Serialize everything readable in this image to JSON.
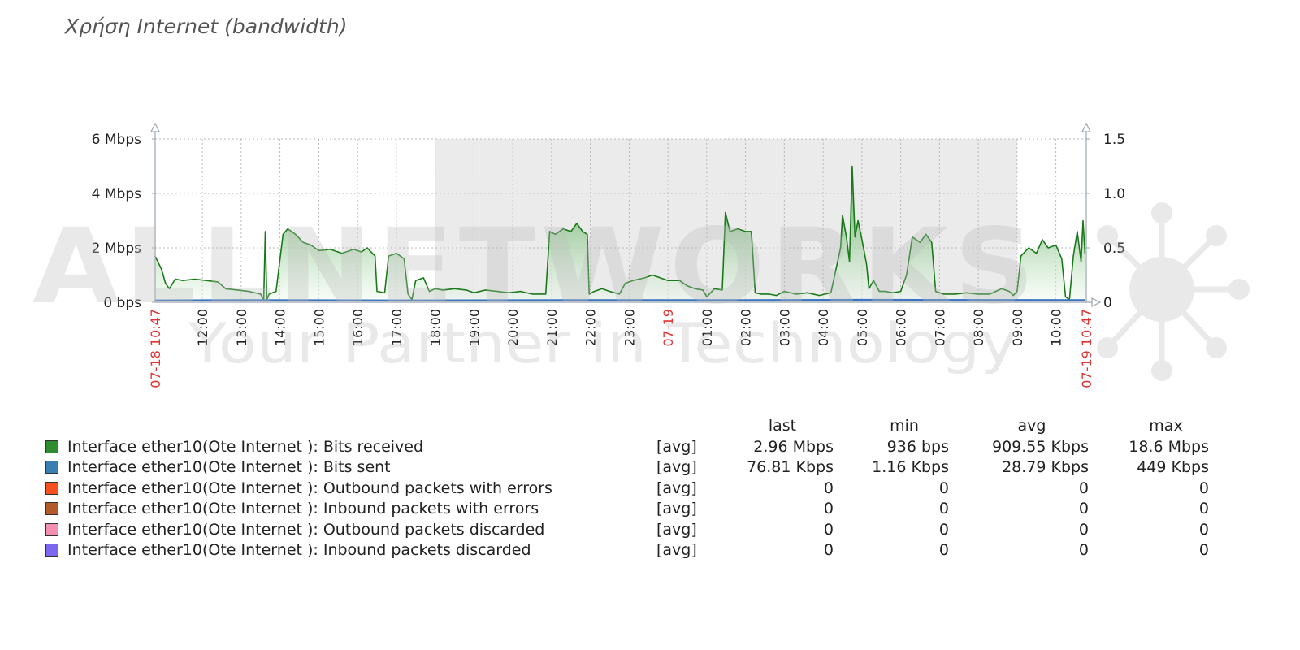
{
  "title": "Χρήση Internet (bandwidth)",
  "watermark": {
    "brand": "ALLNETWORKS",
    "tagline": "Your Partner in Technology"
  },
  "colors": {
    "grid": "#b9b9b9",
    "work_period_band": "#ebebeb",
    "area_fill_top": "#3c9a3c",
    "area_fill_bottom": "#f2fbf2",
    "received_line": "#1a7a1a",
    "sent_line": "#3b74c2",
    "axis": "#9aa6b0",
    "date_label": "#e03333",
    "axis_text": "#222222"
  },
  "chart_data": {
    "type": "area",
    "left_axis": {
      "min": 0,
      "max": 6,
      "unit": "Mbps",
      "ticks": [
        0,
        2,
        4,
        6
      ],
      "tick_labels": [
        "0 bps",
        "2 Mbps",
        "4 Mbps",
        "6 Mbps"
      ]
    },
    "right_axis": {
      "min": 0,
      "max": 1.5,
      "ticks": [
        0,
        0.5,
        1.0,
        1.5
      ],
      "tick_labels": [
        "0",
        "0.5",
        "1.0",
        "1.5"
      ]
    },
    "x_axis": {
      "start_hour": 10.783,
      "end_hour": 34.783,
      "labels": [
        {
          "hour": 10.783,
          "text": "07-18 10:47",
          "highlight": true
        },
        {
          "hour": 12,
          "text": "12:00"
        },
        {
          "hour": 13,
          "text": "13:00"
        },
        {
          "hour": 14,
          "text": "14:00"
        },
        {
          "hour": 15,
          "text": "15:00"
        },
        {
          "hour": 16,
          "text": "16:00"
        },
        {
          "hour": 17,
          "text": "17:00"
        },
        {
          "hour": 18,
          "text": "18:00"
        },
        {
          "hour": 19,
          "text": "19:00"
        },
        {
          "hour": 20,
          "text": "20:00"
        },
        {
          "hour": 21,
          "text": "21:00"
        },
        {
          "hour": 22,
          "text": "22:00"
        },
        {
          "hour": 23,
          "text": "23:00"
        },
        {
          "hour": 24,
          "text": "07-19",
          "highlight": true
        },
        {
          "hour": 25,
          "text": "01:00"
        },
        {
          "hour": 26,
          "text": "02:00"
        },
        {
          "hour": 27,
          "text": "03:00"
        },
        {
          "hour": 28,
          "text": "04:00"
        },
        {
          "hour": 29,
          "text": "05:00"
        },
        {
          "hour": 30,
          "text": "06:00"
        },
        {
          "hour": 31,
          "text": "07:00"
        },
        {
          "hour": 32,
          "text": "08:00"
        },
        {
          "hour": 33,
          "text": "09:00"
        },
        {
          "hour": 34,
          "text": "10:00"
        },
        {
          "hour": 34.783,
          "text": "07-19 10:47",
          "highlight": true
        }
      ]
    },
    "work_period": {
      "from_hour": 18,
      "to_hour": 33
    },
    "series": [
      {
        "name": "Interface ether10(Ote Internet ): Bits received",
        "unit": "Mbps",
        "points": [
          [
            10.78,
            1.7
          ],
          [
            10.85,
            1.5
          ],
          [
            10.95,
            1.2
          ],
          [
            11.05,
            0.7
          ],
          [
            11.15,
            0.5
          ],
          [
            11.3,
            0.85
          ],
          [
            11.5,
            0.8
          ],
          [
            11.8,
            0.85
          ],
          [
            12.1,
            0.8
          ],
          [
            12.4,
            0.75
          ],
          [
            12.6,
            0.5
          ],
          [
            12.9,
            0.45
          ],
          [
            13.2,
            0.4
          ],
          [
            13.5,
            0.3
          ],
          [
            13.58,
            0.1
          ],
          [
            13.62,
            2.6
          ],
          [
            13.66,
            0.1
          ],
          [
            13.72,
            0.3
          ],
          [
            13.9,
            0.4
          ],
          [
            14.08,
            2.5
          ],
          [
            14.2,
            2.7
          ],
          [
            14.4,
            2.5
          ],
          [
            14.6,
            2.2
          ],
          [
            14.8,
            2.1
          ],
          [
            15.0,
            1.9
          ],
          [
            15.3,
            1.95
          ],
          [
            15.6,
            1.8
          ],
          [
            15.9,
            1.95
          ],
          [
            16.1,
            1.85
          ],
          [
            16.25,
            2.0
          ],
          [
            16.45,
            1.7
          ],
          [
            16.5,
            0.4
          ],
          [
            16.7,
            0.35
          ],
          [
            16.8,
            1.7
          ],
          [
            17.0,
            1.8
          ],
          [
            17.2,
            1.6
          ],
          [
            17.3,
            0.3
          ],
          [
            17.4,
            0.1
          ],
          [
            17.5,
            0.8
          ],
          [
            17.7,
            0.9
          ],
          [
            17.85,
            0.4
          ],
          [
            18.0,
            0.5
          ],
          [
            18.2,
            0.45
          ],
          [
            18.5,
            0.5
          ],
          [
            18.8,
            0.45
          ],
          [
            19.0,
            0.35
          ],
          [
            19.3,
            0.45
          ],
          [
            19.6,
            0.4
          ],
          [
            19.9,
            0.35
          ],
          [
            20.2,
            0.4
          ],
          [
            20.5,
            0.3
          ],
          [
            20.85,
            0.3
          ],
          [
            20.95,
            2.6
          ],
          [
            21.1,
            2.5
          ],
          [
            21.3,
            2.7
          ],
          [
            21.5,
            2.6
          ],
          [
            21.65,
            2.9
          ],
          [
            21.8,
            2.6
          ],
          [
            21.92,
            2.5
          ],
          [
            21.97,
            0.3
          ],
          [
            22.1,
            0.4
          ],
          [
            22.3,
            0.5
          ],
          [
            22.5,
            0.4
          ],
          [
            22.75,
            0.3
          ],
          [
            22.9,
            0.7
          ],
          [
            23.1,
            0.8
          ],
          [
            23.4,
            0.9
          ],
          [
            23.6,
            1.0
          ],
          [
            23.8,
            0.9
          ],
          [
            24.0,
            0.8
          ],
          [
            24.3,
            0.8
          ],
          [
            24.5,
            0.6
          ],
          [
            24.7,
            0.5
          ],
          [
            24.9,
            0.45
          ],
          [
            25.0,
            0.2
          ],
          [
            25.2,
            0.5
          ],
          [
            25.4,
            0.45
          ],
          [
            25.48,
            3.3
          ],
          [
            25.6,
            2.6
          ],
          [
            25.8,
            2.7
          ],
          [
            26.0,
            2.6
          ],
          [
            26.15,
            2.6
          ],
          [
            26.25,
            0.35
          ],
          [
            26.4,
            0.3
          ],
          [
            26.6,
            0.3
          ],
          [
            26.8,
            0.25
          ],
          [
            27.0,
            0.4
          ],
          [
            27.3,
            0.3
          ],
          [
            27.6,
            0.35
          ],
          [
            27.9,
            0.25
          ],
          [
            28.2,
            0.35
          ],
          [
            28.45,
            2.0
          ],
          [
            28.5,
            3.2
          ],
          [
            28.6,
            2.4
          ],
          [
            28.68,
            1.5
          ],
          [
            28.75,
            5.0
          ],
          [
            28.82,
            2.4
          ],
          [
            28.9,
            3.0
          ],
          [
            29.0,
            2.3
          ],
          [
            29.12,
            1.4
          ],
          [
            29.18,
            0.5
          ],
          [
            29.3,
            0.8
          ],
          [
            29.45,
            0.4
          ],
          [
            29.6,
            0.4
          ],
          [
            29.8,
            0.35
          ],
          [
            30.0,
            0.4
          ],
          [
            30.15,
            1.0
          ],
          [
            30.3,
            2.4
          ],
          [
            30.5,
            2.2
          ],
          [
            30.65,
            2.5
          ],
          [
            30.8,
            2.2
          ],
          [
            30.9,
            0.4
          ],
          [
            31.0,
            0.35
          ],
          [
            31.1,
            0.3
          ],
          [
            31.4,
            0.3
          ],
          [
            31.7,
            0.35
          ],
          [
            32.0,
            0.3
          ],
          [
            32.3,
            0.3
          ],
          [
            32.6,
            0.5
          ],
          [
            32.8,
            0.4
          ],
          [
            32.9,
            0.25
          ],
          [
            33.0,
            0.4
          ],
          [
            33.1,
            1.7
          ],
          [
            33.3,
            2.0
          ],
          [
            33.5,
            1.8
          ],
          [
            33.65,
            2.3
          ],
          [
            33.8,
            2.0
          ],
          [
            34.0,
            2.1
          ],
          [
            34.15,
            1.6
          ],
          [
            34.25,
            0.2
          ],
          [
            34.35,
            0.1
          ],
          [
            34.45,
            1.7
          ],
          [
            34.55,
            2.6
          ],
          [
            34.65,
            1.5
          ],
          [
            34.7,
            3.0
          ],
          [
            34.75,
            1.8
          ]
        ]
      },
      {
        "name": "Interface ether10(Ote Internet ): Bits sent",
        "unit": "Mbps",
        "points": [
          [
            10.78,
            0.07
          ],
          [
            13.0,
            0.08
          ],
          [
            17.0,
            0.07
          ],
          [
            21.5,
            0.08
          ],
          [
            26.0,
            0.08
          ],
          [
            29.0,
            0.09
          ],
          [
            34.75,
            0.08
          ]
        ]
      }
    ]
  },
  "legend": {
    "headers": {
      "last": "last",
      "min": "min",
      "avg": "avg",
      "max": "max"
    },
    "rows": [
      {
        "color": "#2e8b2e",
        "label": "Interface ether10(Ote Internet ): Bits received",
        "func": "[avg]",
        "last": "2.96 Mbps",
        "min": "936 bps",
        "avg": "909.55 Kbps",
        "max": "18.6 Mbps"
      },
      {
        "color": "#3a7fb2",
        "label": "Interface ether10(Ote Internet ): Bits sent",
        "func": "[avg]",
        "last": "76.81 Kbps",
        "min": "1.16 Kbps",
        "avg": "28.79 Kbps",
        "max": "449 Kbps"
      },
      {
        "color": "#f4511e",
        "label": "Interface ether10(Ote Internet ): Outbound packets with errors",
        "func": "[avg]",
        "last": "0",
        "min": "0",
        "avg": "0",
        "max": "0"
      },
      {
        "color": "#b35a2a",
        "label": "Interface ether10(Ote Internet ): Inbound packets with errors",
        "func": "[avg]",
        "last": "0",
        "min": "0",
        "avg": "0",
        "max": "0"
      },
      {
        "color": "#f48fb1",
        "label": "Interface ether10(Ote Internet ): Outbound packets discarded",
        "func": "[avg]",
        "last": "0",
        "min": "0",
        "avg": "0",
        "max": "0"
      },
      {
        "color": "#7b68ee",
        "label": "Interface ether10(Ote Internet ): Inbound packets discarded",
        "func": "[avg]",
        "last": "0",
        "min": "0",
        "avg": "0",
        "max": "0"
      }
    ]
  }
}
